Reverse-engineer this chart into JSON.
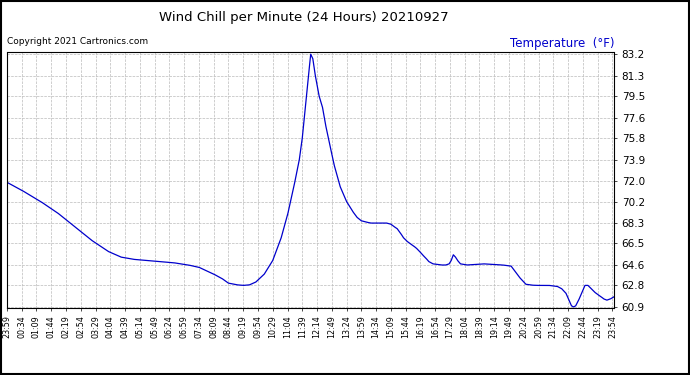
{
  "title": "Wind Chill per Minute (24 Hours) 20210927",
  "ylabel": "Temperature  (°F)",
  "copyright_text": "Copyright 2021 Cartronics.com",
  "line_color": "#0000cc",
  "ylabel_color": "#0000cc",
  "background_color": "#ffffff",
  "grid_color": "#bbbbbb",
  "ylim": [
    60.9,
    83.2
  ],
  "yticks": [
    60.9,
    62.8,
    64.6,
    66.5,
    68.3,
    70.2,
    72.0,
    73.9,
    75.8,
    77.6,
    79.5,
    81.3,
    83.2
  ],
  "x_labels": [
    "23:59",
    "00:34",
    "01:09",
    "01:44",
    "02:19",
    "02:54",
    "03:29",
    "04:04",
    "04:39",
    "05:14",
    "05:49",
    "06:24",
    "06:59",
    "07:34",
    "08:09",
    "08:44",
    "09:19",
    "09:54",
    "10:29",
    "11:04",
    "11:39",
    "12:14",
    "12:49",
    "13:24",
    "13:59",
    "14:34",
    "15:09",
    "15:44",
    "16:19",
    "16:54",
    "17:29",
    "18:04",
    "18:39",
    "19:14",
    "19:49",
    "20:24",
    "20:59",
    "21:34",
    "22:09",
    "22:44",
    "23:19",
    "23:54"
  ],
  "control_points": [
    [
      0,
      71.9
    ],
    [
      35,
      71.2
    ],
    [
      80,
      70.2
    ],
    [
      120,
      69.2
    ],
    [
      160,
      68.0
    ],
    [
      200,
      66.8
    ],
    [
      240,
      65.8
    ],
    [
      270,
      65.3
    ],
    [
      300,
      65.1
    ],
    [
      330,
      65.0
    ],
    [
      360,
      64.9
    ],
    [
      395,
      64.8
    ],
    [
      430,
      64.6
    ],
    [
      455,
      64.4
    ],
    [
      490,
      63.8
    ],
    [
      510,
      63.4
    ],
    [
      525,
      63.0
    ],
    [
      545,
      62.85
    ],
    [
      560,
      62.8
    ],
    [
      575,
      62.85
    ],
    [
      590,
      63.1
    ],
    [
      610,
      63.8
    ],
    [
      630,
      65.0
    ],
    [
      650,
      67.0
    ],
    [
      665,
      69.0
    ],
    [
      680,
      71.5
    ],
    [
      693,
      73.9
    ],
    [
      700,
      75.8
    ],
    [
      706,
      78.0
    ],
    [
      710,
      79.5
    ],
    [
      714,
      81.0
    ],
    [
      718,
      82.5
    ],
    [
      720,
      83.2
    ],
    [
      725,
      82.8
    ],
    [
      730,
      81.5
    ],
    [
      735,
      80.5
    ],
    [
      740,
      79.5
    ],
    [
      748,
      78.5
    ],
    [
      755,
      77.0
    ],
    [
      762,
      75.8
    ],
    [
      775,
      73.5
    ],
    [
      790,
      71.5
    ],
    [
      805,
      70.2
    ],
    [
      820,
      69.3
    ],
    [
      830,
      68.8
    ],
    [
      840,
      68.5
    ],
    [
      850,
      68.4
    ],
    [
      856,
      68.35
    ],
    [
      862,
      68.3
    ],
    [
      870,
      68.3
    ],
    [
      880,
      68.3
    ],
    [
      890,
      68.3
    ],
    [
      900,
      68.3
    ],
    [
      910,
      68.2
    ],
    [
      917,
      68.0
    ],
    [
      925,
      67.8
    ],
    [
      933,
      67.4
    ],
    [
      940,
      67.0
    ],
    [
      948,
      66.7
    ],
    [
      955,
      66.5
    ],
    [
      963,
      66.3
    ],
    [
      970,
      66.1
    ],
    [
      978,
      65.8
    ],
    [
      985,
      65.5
    ],
    [
      993,
      65.2
    ],
    [
      1000,
      64.9
    ],
    [
      1010,
      64.7
    ],
    [
      1020,
      64.65
    ],
    [
      1030,
      64.6
    ],
    [
      1040,
      64.6
    ],
    [
      1048,
      64.7
    ],
    [
      1053,
      65.0
    ],
    [
      1058,
      65.5
    ],
    [
      1063,
      65.3
    ],
    [
      1068,
      65.0
    ],
    [
      1075,
      64.7
    ],
    [
      1090,
      64.6
    ],
    [
      1110,
      64.65
    ],
    [
      1130,
      64.7
    ],
    [
      1150,
      64.65
    ],
    [
      1175,
      64.6
    ],
    [
      1195,
      64.5
    ],
    [
      1215,
      63.5
    ],
    [
      1230,
      62.9
    ],
    [
      1245,
      62.82
    ],
    [
      1255,
      62.8
    ],
    [
      1265,
      62.8
    ],
    [
      1275,
      62.8
    ],
    [
      1285,
      62.8
    ],
    [
      1295,
      62.75
    ],
    [
      1305,
      62.7
    ],
    [
      1315,
      62.5
    ],
    [
      1325,
      62.1
    ],
    [
      1332,
      61.5
    ],
    [
      1338,
      61.0
    ],
    [
      1343,
      60.9
    ],
    [
      1348,
      61.0
    ],
    [
      1355,
      61.5
    ],
    [
      1363,
      62.2
    ],
    [
      1370,
      62.8
    ],
    [
      1377,
      62.8
    ],
    [
      1385,
      62.5
    ],
    [
      1393,
      62.2
    ],
    [
      1400,
      62.0
    ],
    [
      1408,
      61.8
    ],
    [
      1415,
      61.6
    ],
    [
      1422,
      61.5
    ],
    [
      1430,
      61.6
    ],
    [
      1439,
      61.8
    ]
  ]
}
